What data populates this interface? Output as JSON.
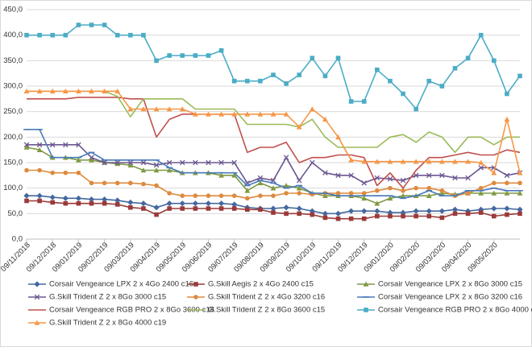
{
  "chart_data": {
    "type": "line",
    "categories": [
      "09/11/2018",
      null,
      "09/12/2018",
      null,
      "09/01/2019",
      null,
      "09/02/2019",
      null,
      "09/03/2019",
      null,
      "09/04/2019",
      null,
      "09/05/2019",
      null,
      "09/06/2019",
      null,
      "09/07/2019",
      null,
      "09/08/2019",
      null,
      "09/09/2019",
      null,
      "09/10/2019",
      null,
      "09/11/2019",
      null,
      "09/12/2019",
      null,
      "09/01/2020",
      null,
      "09/02/2020",
      null,
      "09/03/2020",
      null,
      "09/04/2020",
      null,
      "09/05/2020",
      null,
      null
    ],
    "ylim": [
      0,
      450
    ],
    "yticks": [
      {
        "value": 0,
        "label": "0,0"
      },
      {
        "value": 50,
        "label": "50,0"
      },
      {
        "value": 100,
        "label": "100,0"
      },
      {
        "value": 150,
        "label": "150,0"
      },
      {
        "value": 200,
        "label": "200,0"
      },
      {
        "value": 250,
        "label": "250,0"
      },
      {
        "value": 300,
        "label": "300,0"
      },
      {
        "value": 350,
        "label": "350,0"
      },
      {
        "value": 400,
        "label": "400,0"
      },
      {
        "value": 450,
        "label": "450,0"
      }
    ],
    "grid": true,
    "series": [
      {
        "name": "Corsair Vengeance LPX 2 x 4Go 2400 c16",
        "color": "#44689f",
        "marker": "diamond",
        "values": [
          85,
          85,
          82,
          80,
          80,
          78,
          78,
          76,
          72,
          70,
          62,
          70,
          70,
          70,
          70,
          70,
          68,
          62,
          60,
          60,
          62,
          60,
          55,
          50,
          50,
          55,
          55,
          55,
          52,
          52,
          55,
          55,
          55,
          58,
          55,
          58,
          60,
          60,
          58
        ]
      },
      {
        "name": "G.Skill Aegis 2 x 4Go 2400 c15",
        "color": "#9b3a3a",
        "marker": "square",
        "values": [
          75,
          75,
          72,
          70,
          70,
          70,
          70,
          68,
          62,
          60,
          48,
          60,
          60,
          60,
          60,
          60,
          60,
          58,
          58,
          52,
          50,
          50,
          48,
          42,
          40,
          40,
          40,
          45,
          45,
          45,
          45,
          45,
          42,
          50,
          50,
          52,
          45,
          48,
          50
        ]
      },
      {
        "name": "Corsair Vengeance LPX 2 x 8Go 3000 c15",
        "color": "#7f9a43",
        "marker": "triangle",
        "values": [
          180,
          175,
          160,
          160,
          155,
          155,
          150,
          148,
          145,
          135,
          135,
          135,
          130,
          130,
          130,
          125,
          125,
          95,
          110,
          100,
          105,
          100,
          90,
          85,
          85,
          85,
          80,
          70,
          80,
          85,
          85,
          85,
          90,
          88,
          90,
          90,
          90,
          90,
          90
        ]
      },
      {
        "name": "G.Skill Trident Z 2 x 8Go 3000 c15",
        "color": "#6b5691",
        "marker": "x",
        "values": [
          185,
          185,
          185,
          185,
          185,
          160,
          150,
          150,
          150,
          150,
          145,
          150,
          150,
          150,
          150,
          150,
          150,
          110,
          120,
          115,
          160,
          115,
          150,
          130,
          125,
          125,
          110,
          120,
          118,
          115,
          125,
          125,
          125,
          120,
          120,
          140,
          140,
          125,
          130
        ]
      },
      {
        "name": "G.Skill Trident Z 2 x 4Go 3200 c16",
        "color": "#de8a3e",
        "marker": "circle",
        "values": [
          135,
          135,
          130,
          130,
          130,
          110,
          110,
          110,
          110,
          108,
          105,
          90,
          85,
          85,
          85,
          85,
          85,
          80,
          85,
          85,
          90,
          90,
          88,
          90,
          90,
          90,
          90,
          95,
          100,
          95,
          100,
          100,
          95,
          85,
          90,
          100,
          110,
          110,
          110
        ]
      },
      {
        "name": "Corsair Vengeance LPX 2 x 8Go 3200 c16",
        "color": "#4a7ab8",
        "marker": "dash",
        "values": [
          215,
          215,
          160,
          160,
          160,
          170,
          155,
          155,
          155,
          155,
          155,
          140,
          130,
          130,
          130,
          130,
          130,
          105,
          115,
          110,
          100,
          105,
          90,
          90,
          85,
          85,
          85,
          85,
          85,
          80,
          85,
          95,
          85,
          85,
          95,
          95,
          100,
          95,
          95
        ]
      },
      {
        "name": "Corsair Vengeance RGB PRO 2 x 8Go 3600 c18",
        "color": "#c0504d",
        "marker": "none",
        "values": [
          275,
          275,
          275,
          275,
          278,
          278,
          278,
          278,
          275,
          275,
          200,
          235,
          245,
          245,
          245,
          245,
          245,
          170,
          180,
          180,
          190,
          150,
          160,
          160,
          165,
          165,
          160,
          105,
          130,
          100,
          135,
          160,
          160,
          165,
          170,
          165,
          165,
          175,
          170
        ]
      },
      {
        "name": "G.Skill Trident Z 2 x 8Go 3600 c15",
        "color": "#9bbb59",
        "marker": "none",
        "values": [
          290,
          290,
          290,
          290,
          290,
          290,
          290,
          280,
          240,
          275,
          275,
          275,
          275,
          255,
          255,
          255,
          255,
          225,
          225,
          225,
          225,
          220,
          235,
          200,
          180,
          180,
          180,
          180,
          200,
          205,
          190,
          210,
          200,
          170,
          200,
          200,
          185,
          200,
          200
        ]
      },
      {
        "name": "Corsair Vengeance RGB PRO 2 x 8Go 4000 c19",
        "color": "#4bacc6",
        "marker": "square",
        "values": [
          400,
          400,
          400,
          400,
          420,
          420,
          420,
          400,
          400,
          400,
          350,
          360,
          360,
          360,
          360,
          370,
          310,
          310,
          310,
          322,
          305,
          322,
          355,
          320,
          355,
          270,
          270,
          332,
          310,
          285,
          255,
          310,
          300,
          335,
          355,
          400,
          350,
          285,
          320
        ]
      },
      {
        "name": "G.Skill Trident Z 2 x 8Go 4000 c19",
        "color": "#f79646",
        "marker": "triangle",
        "values": [
          290,
          290,
          290,
          290,
          290,
          290,
          290,
          290,
          255,
          255,
          255,
          255,
          255,
          245,
          245,
          245,
          245,
          245,
          245,
          245,
          245,
          220,
          255,
          235,
          200,
          155,
          152,
          152,
          152,
          152,
          152,
          152,
          152,
          152,
          152,
          150,
          130,
          235,
          130
        ]
      }
    ]
  }
}
